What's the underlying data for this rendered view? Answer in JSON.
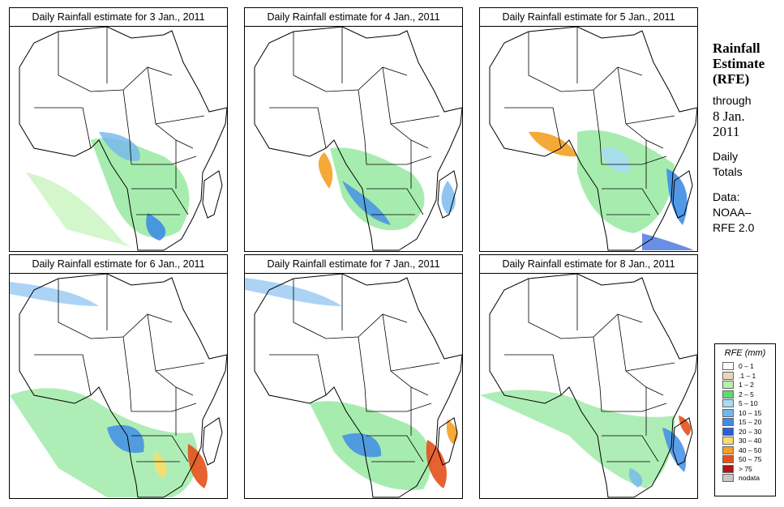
{
  "panels": [
    {
      "title": "Daily Rainfall estimate for  3 Jan., 2011"
    },
    {
      "title": "Daily Rainfall estimate for  4 Jan., 2011"
    },
    {
      "title": "Daily Rainfall estimate for  5 Jan., 2011"
    },
    {
      "title": "Daily Rainfall estimate for  6 Jan., 2011"
    },
    {
      "title": "Daily Rainfall estimate for  7 Jan., 2011"
    },
    {
      "title": "Daily Rainfall estimate for  8 Jan., 2011"
    }
  ],
  "side": {
    "heading_line1": "Rainfall",
    "heading_line2": "Estimate",
    "heading_line3": "(RFE)",
    "through": "through",
    "date_line1": "8 Jan.",
    "date_line2": "2011",
    "daily": "Daily",
    "totals": "Totals",
    "data_label": "Data:",
    "source_line1": "NOAA–",
    "source_line2": "RFE 2.0"
  },
  "legend": {
    "title": "RFE (mm)",
    "items": [
      {
        "label": "0 – 1",
        "color": "#ffffff"
      },
      {
        "label": ".1 – 1",
        "color": "#e8d7bd"
      },
      {
        "label": "1 – 2",
        "color": "#b7f0a8"
      },
      {
        "label": "2 – 5",
        "color": "#5fdc6e"
      },
      {
        "label": "5 – 10",
        "color": "#a8dcf4"
      },
      {
        "label": "10 – 15",
        "color": "#74b6ef"
      },
      {
        "label": "15 – 20",
        "color": "#3f8de6"
      },
      {
        "label": "20 – 30",
        "color": "#2a5fd8"
      },
      {
        "label": "30 – 40",
        "color": "#f7de6b"
      },
      {
        "label": "40 – 50",
        "color": "#f4a024"
      },
      {
        "label": "50 – 75",
        "color": "#e5501a"
      },
      {
        "label": "> 75",
        "color": "#b41414"
      },
      {
        "label": "nodata",
        "color": "#c8c8c8"
      }
    ]
  }
}
